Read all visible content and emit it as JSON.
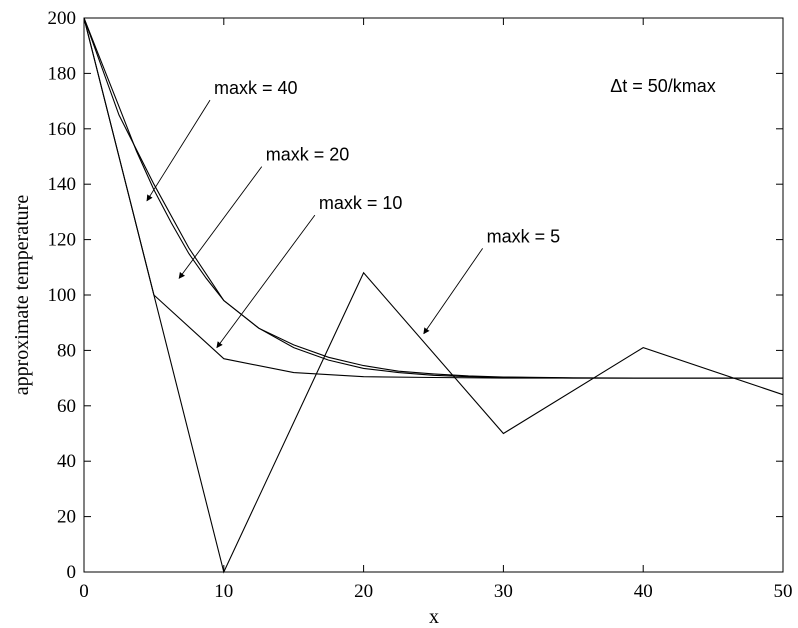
{
  "chart_data": {
    "type": "line",
    "title": "",
    "xlabel": "x",
    "ylabel": "approximate temperature",
    "xlim": [
      0,
      50
    ],
    "ylim": [
      0,
      200
    ],
    "xticks": [
      0,
      10,
      20,
      30,
      40,
      50
    ],
    "yticks": [
      0,
      20,
      40,
      60,
      80,
      100,
      120,
      140,
      160,
      180,
      200
    ],
    "grid": false,
    "note": "Δt = 50/kmax",
    "series": [
      {
        "name": "maxk = 5",
        "x": [
          0,
          10,
          20,
          30,
          40,
          50
        ],
        "y": [
          200,
          0,
          108,
          50,
          81,
          64
        ]
      },
      {
        "name": "maxk = 10",
        "x": [
          0,
          5,
          10,
          15,
          20,
          25,
          30,
          35,
          40,
          45,
          50
        ],
        "y": [
          200,
          100,
          77,
          72,
          70.5,
          70.2,
          70,
          70,
          70,
          70,
          70
        ]
      },
      {
        "name": "maxk = 20",
        "x": [
          0,
          2.5,
          5,
          7.5,
          10,
          12.5,
          15,
          17.5,
          20,
          22.5,
          25,
          27.5,
          30,
          35,
          40,
          45,
          50
        ],
        "y": [
          200,
          165,
          140,
          117,
          98,
          88,
          81,
          76.5,
          73.5,
          72,
          71,
          70.5,
          70.3,
          70,
          70,
          70,
          70
        ]
      },
      {
        "name": "maxk = 40",
        "x": [
          0,
          1.25,
          2.5,
          3.75,
          5,
          6.25,
          7.5,
          8.75,
          10,
          12.5,
          15,
          17.5,
          20,
          22.5,
          25,
          27.5,
          30,
          35,
          40,
          45,
          50
        ],
        "y": [
          200,
          184,
          168,
          152,
          138,
          126,
          115,
          106,
          98,
          88,
          82,
          77.5,
          74.5,
          72.5,
          71.5,
          70.8,
          70.4,
          70.1,
          70,
          70,
          70
        ]
      }
    ],
    "annotations": [
      {
        "text": "maxk = 40",
        "x": 9.3,
        "y": 172.5,
        "arrow_to": [
          4.5,
          134
        ]
      },
      {
        "text": "maxk = 20",
        "x": 13,
        "y": 148.5,
        "arrow_to": [
          6.8,
          106
        ]
      },
      {
        "text": "maxk = 10",
        "x": 16.8,
        "y": 131,
        "arrow_to": [
          9.5,
          81
        ]
      },
      {
        "text": "maxk = 5",
        "x": 28.8,
        "y": 119,
        "arrow_to": [
          24.3,
          86
        ]
      }
    ]
  }
}
